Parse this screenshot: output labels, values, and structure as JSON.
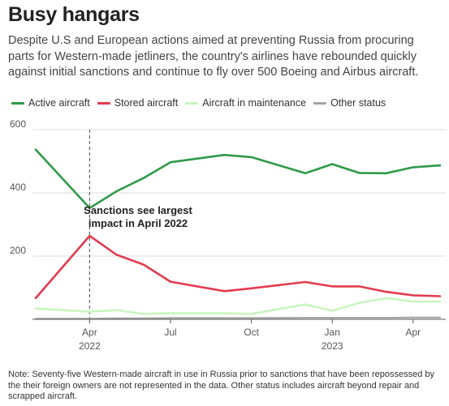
{
  "header": {
    "title": "Busy hangars",
    "subtitle": "Despite U.S and European actions aimed at preventing Russia from procuring parts for Western-made jetliners, the country's airlines have rebounded quickly against initial sanctions and continue to fly over 500 Boeing and Airbus aircraft."
  },
  "annotation": {
    "line1": "Sanctions see largest",
    "line2": "impact in April 2022"
  },
  "note": "Note: Seventy-five Western-made aircraft in use in Russia prior to sanctions that have been repossessed by the their foreign owners are not represented in the data. Other status includes aircraft beyond repair and scrapped aircraft.",
  "chart_data": {
    "type": "line",
    "title": "Busy hangars",
    "xlabel": "",
    "ylabel": "",
    "x": [
      "2022-02",
      "2022-04",
      "2022-05",
      "2022-06",
      "2022-07",
      "2022-09",
      "2022-10",
      "2022-12",
      "2023-01",
      "2023-02",
      "2023-03",
      "2023-04",
      "2023-05"
    ],
    "x_ticks": [
      {
        "date": "2022-04",
        "label": "Apr",
        "year": "2022"
      },
      {
        "date": "2022-07",
        "label": "Jul",
        "year": ""
      },
      {
        "date": "2022-10",
        "label": "Oct",
        "year": ""
      },
      {
        "date": "2023-01",
        "label": "Jan",
        "year": "2023"
      },
      {
        "date": "2023-04",
        "label": "Apr",
        "year": ""
      }
    ],
    "xlim": [
      "2022-02",
      "2023-05"
    ],
    "y_ticks": [
      200,
      400,
      600
    ],
    "ylim": [
      0,
      600
    ],
    "grid": true,
    "legend_position": "top",
    "marker_date": "2022-04",
    "series": [
      {
        "name": "Active aircraft",
        "color": "#2e9a48",
        "values": [
          537,
          352,
          405,
          447,
          497,
          520,
          513,
          462,
          491,
          463,
          462,
          481,
          487
        ]
      },
      {
        "name": "Stored aircraft",
        "color": "#e23b4e",
        "values": [
          67,
          264,
          204,
          173,
          119,
          89,
          98,
          118,
          104,
          104,
          87,
          76,
          73
        ]
      },
      {
        "name": "Aircraft in maintenance",
        "color": "#c8f5c0",
        "values": [
          34,
          24,
          29,
          17,
          19,
          19,
          17,
          47,
          27,
          52,
          67,
          56,
          56
        ]
      },
      {
        "name": "Other status",
        "color": "#a3a3a3",
        "values": [
          2,
          2,
          3,
          3,
          4,
          4,
          4,
          5,
          5,
          5,
          5,
          6,
          6
        ]
      }
    ]
  }
}
